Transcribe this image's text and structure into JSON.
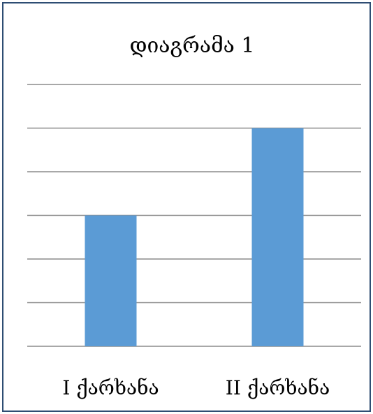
{
  "chart_data": {
    "type": "bar",
    "title": "დიაგრამა 1",
    "categories": [
      "I ქარხანა",
      "II ქარხანა"
    ],
    "values": [
      3,
      5
    ],
    "ylim": [
      0,
      6
    ],
    "grid": true,
    "bar_color": "#5b9bd5",
    "grid_color": "#8c8c8c",
    "border_color": "#2e4d73"
  }
}
